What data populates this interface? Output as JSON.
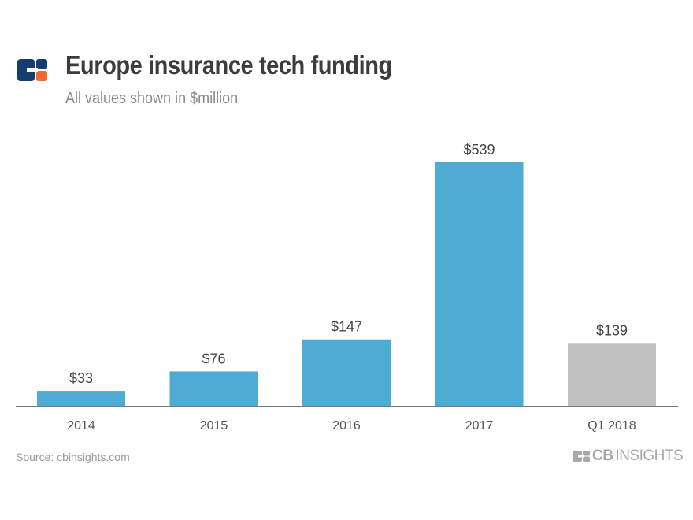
{
  "header": {
    "title": "Europe insurance tech funding",
    "subtitle": "All values shown in $million"
  },
  "footer": {
    "source": "Source: cbinsights.com",
    "brand_bold": "CB",
    "brand_light": "INSIGHTS"
  },
  "colors": {
    "bar": "#4eabd3",
    "projected_bar": "#c1c1c1",
    "logo_blue": "#173d6e",
    "logo_orange": "#f26a2e"
  },
  "chart_data": {
    "type": "bar",
    "title": "Europe insurance tech funding",
    "subtitle": "All values shown in $million",
    "categories": [
      "2014",
      "2015",
      "2016",
      "2017",
      "Q1 2018"
    ],
    "values": [
      33,
      76,
      147,
      539,
      139
    ],
    "data_labels": [
      "$33",
      "$76",
      "$147",
      "$539",
      "$139"
    ],
    "bar_colors": [
      "#4eabd3",
      "#4eabd3",
      "#4eabd3",
      "#4eabd3",
      "#c1c1c1"
    ],
    "xlabel": "",
    "ylabel": "",
    "ylim": [
      0,
      539
    ],
    "grid": false
  }
}
